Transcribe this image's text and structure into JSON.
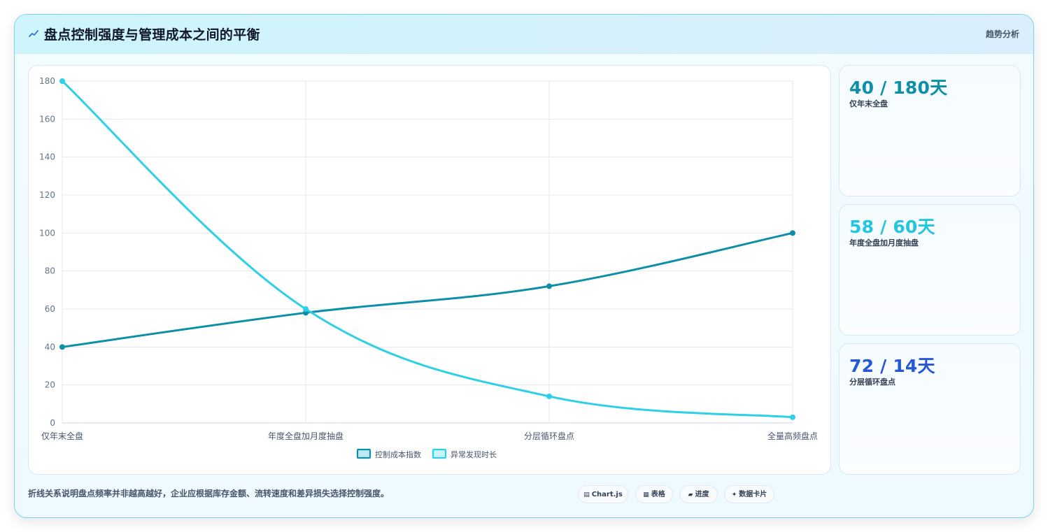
{
  "header": {
    "icon": "chart-trend-icon",
    "title": "盘点控制强度与管理成本之间的平衡",
    "tag": "趋势分析"
  },
  "stats": [
    {
      "value": "40 / 180天",
      "label": "仅年末全盘",
      "color": "#0e8fa8"
    },
    {
      "value": "58 / 60天",
      "label": "年度全盘加月度抽盘",
      "color": "#22c7df"
    },
    {
      "value": "72 / 14天",
      "label": "分层循环盘点",
      "color": "#2557d6"
    }
  ],
  "footer": {
    "note": "折线关系说明盘点频率并非越高越好，企业应根据库存金额、流转速度和差异损失选择控制强度。",
    "pills": [
      {
        "icon": "chart-icon",
        "label": "Chart.js"
      },
      {
        "icon": "table-icon",
        "label": "表格"
      },
      {
        "icon": "progress-icon",
        "label": "进度"
      },
      {
        "icon": "card-icon",
        "label": "数据卡片"
      }
    ]
  },
  "chart_data": {
    "type": "line",
    "categories": [
      "仅年末全盘",
      "年度全盘加月度抽盘",
      "分层循环盘点",
      "全量高频盘点"
    ],
    "series": [
      {
        "name": "控制成本指数",
        "values": [
          40,
          58,
          72,
          100
        ],
        "color": "#0e8fa8"
      },
      {
        "name": "异常发现时长",
        "values": [
          180,
          60,
          14,
          3
        ],
        "color": "#2dd0e6"
      }
    ],
    "ylim": [
      0,
      180
    ],
    "yticks": [
      0,
      20,
      40,
      60,
      80,
      100,
      120,
      140,
      160,
      180
    ],
    "grid": true,
    "legend": "bottom"
  }
}
